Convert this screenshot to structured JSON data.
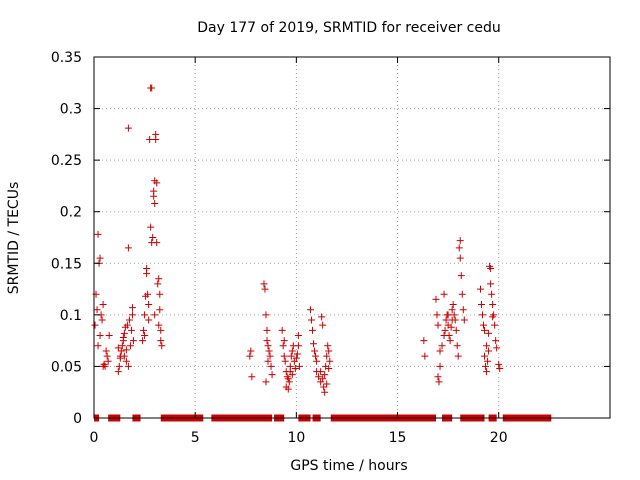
{
  "chart_data": {
    "type": "scatter",
    "title": "Day 177 of 2019, SRMTID for receiver cedu",
    "xlabel": "GPS time / hours",
    "ylabel": "SRMTID / TECUs",
    "xlim": [
      0,
      25.5
    ],
    "ylim": [
      0,
      0.35
    ],
    "xticks": [
      0,
      5,
      10,
      15,
      20
    ],
    "xtick_labels": [
      "0",
      "5",
      "10",
      "15",
      "20"
    ],
    "yticks": [
      0,
      0.05,
      0.1,
      0.15,
      0.2,
      0.25,
      0.3,
      0.35
    ],
    "ytick_labels": [
      "0",
      "0.05",
      "0.1",
      "0.15",
      "0.2",
      "0.25",
      "0.3",
      "0.35"
    ],
    "grid": true,
    "marker": "plus",
    "color": "#cc0000",
    "series": [
      {
        "name": "SRMTID",
        "points": [
          [
            0.05,
            0.09
          ],
          [
            0.1,
            0.12
          ],
          [
            0.15,
            0.105
          ],
          [
            0.2,
            0.178
          ],
          [
            0.25,
            0.15
          ],
          [
            0.3,
            0.155
          ],
          [
            0.2,
            0.07
          ],
          [
            0.3,
            0.08
          ],
          [
            0.35,
            0.1
          ],
          [
            0.4,
            0.095
          ],
          [
            0.45,
            0.11
          ],
          [
            0.5,
            0.052
          ],
          [
            0.55,
            0.05
          ],
          [
            0.6,
            0.065
          ],
          [
            0.65,
            0.06
          ],
          [
            0.7,
            0.055
          ],
          [
            0.75,
            0.08
          ],
          [
            0.45,
            0.05
          ],
          [
            1.2,
            0.045
          ],
          [
            1.25,
            0.05
          ],
          [
            1.3,
            0.06
          ],
          [
            1.35,
            0.065
          ],
          [
            1.4,
            0.07
          ],
          [
            1.45,
            0.075
          ],
          [
            1.5,
            0.06
          ],
          [
            1.5,
            0.082
          ],
          [
            1.55,
            0.088
          ],
          [
            1.6,
            0.055
          ],
          [
            1.65,
            0.09
          ],
          [
            1.7,
            0.05
          ],
          [
            1.75,
            0.095
          ],
          [
            1.8,
            0.07
          ],
          [
            1.85,
            0.085
          ],
          [
            1.9,
            0.1
          ],
          [
            1.95,
            0.075
          ],
          [
            1.7,
            0.165
          ],
          [
            1.7,
            0.281
          ],
          [
            1.2,
            0.068
          ],
          [
            1.3,
            0.058
          ],
          [
            1.45,
            0.078
          ],
          [
            1.6,
            0.066
          ],
          [
            1.9,
            0.107
          ],
          [
            2.4,
            0.075
          ],
          [
            2.45,
            0.085
          ],
          [
            2.5,
            0.1
          ],
          [
            2.55,
            0.118
          ],
          [
            2.6,
            0.14
          ],
          [
            2.6,
            0.145
          ],
          [
            2.65,
            0.12
          ],
          [
            2.7,
            0.11
          ],
          [
            2.75,
            0.27
          ],
          [
            2.8,
            0.32
          ],
          [
            2.85,
            0.32
          ],
          [
            2.8,
            0.185
          ],
          [
            2.85,
            0.17
          ],
          [
            2.9,
            0.175
          ],
          [
            2.95,
            0.215
          ],
          [
            2.95,
            0.22
          ],
          [
            3.0,
            0.23
          ],
          [
            3.0,
            0.208
          ],
          [
            3.05,
            0.27
          ],
          [
            3.05,
            0.275
          ],
          [
            3.1,
            0.228
          ],
          [
            3.1,
            0.17
          ],
          [
            3.15,
            0.13
          ],
          [
            3.2,
            0.135
          ],
          [
            3.25,
            0.105
          ],
          [
            3.3,
            0.085
          ],
          [
            3.3,
            0.075
          ],
          [
            3.35,
            0.07
          ],
          [
            2.5,
            0.08
          ],
          [
            2.7,
            0.095
          ],
          [
            3.0,
            0.1
          ],
          [
            3.2,
            0.09
          ],
          [
            3.25,
            0.12
          ],
          [
            7.7,
            0.06
          ],
          [
            7.75,
            0.065
          ],
          [
            7.8,
            0.04
          ],
          [
            8.4,
            0.13
          ],
          [
            8.45,
            0.125
          ],
          [
            8.5,
            0.1
          ],
          [
            8.55,
            0.085
          ],
          [
            8.6,
            0.07
          ],
          [
            8.6,
            0.055
          ],
          [
            8.65,
            0.065
          ],
          [
            8.7,
            0.06
          ],
          [
            8.75,
            0.05
          ],
          [
            8.8,
            0.042
          ],
          [
            8.5,
            0.035
          ],
          [
            8.55,
            0.075
          ],
          [
            9.3,
            0.085
          ],
          [
            9.35,
            0.07
          ],
          [
            9.4,
            0.06
          ],
          [
            9.45,
            0.055
          ],
          [
            9.5,
            0.045
          ],
          [
            9.55,
            0.04
          ],
          [
            9.6,
            0.038
          ],
          [
            9.65,
            0.035
          ],
          [
            9.7,
            0.05
          ],
          [
            9.75,
            0.06
          ],
          [
            9.8,
            0.065
          ],
          [
            9.85,
            0.07
          ],
          [
            9.5,
            0.03
          ],
          [
            9.6,
            0.028
          ],
          [
            9.7,
            0.045
          ],
          [
            9.9,
            0.055
          ],
          [
            9.95,
            0.048
          ],
          [
            10.0,
            0.058
          ],
          [
            10.05,
            0.062
          ],
          [
            10.1,
            0.07
          ],
          [
            10.1,
            0.08
          ],
          [
            10.15,
            0.05
          ],
          [
            9.4,
            0.075
          ],
          [
            9.8,
            0.042
          ],
          [
            10.7,
            0.105
          ],
          [
            10.75,
            0.095
          ],
          [
            10.8,
            0.085
          ],
          [
            10.85,
            0.072
          ],
          [
            10.9,
            0.065
          ],
          [
            10.95,
            0.06
          ],
          [
            11.0,
            0.045
          ],
          [
            11.1,
            0.04
          ],
          [
            11.2,
            0.035
          ],
          [
            11.25,
            0.098
          ],
          [
            11.3,
            0.09
          ],
          [
            11.35,
            0.03
          ],
          [
            11.4,
            0.025
          ],
          [
            11.45,
            0.05
          ],
          [
            11.5,
            0.06
          ],
          [
            11.55,
            0.07
          ],
          [
            11.6,
            0.065
          ],
          [
            11.65,
            0.055
          ],
          [
            11.2,
            0.045
          ],
          [
            11.3,
            0.038
          ],
          [
            11.4,
            0.042
          ],
          [
            11.5,
            0.033
          ],
          [
            11.6,
            0.048
          ],
          [
            11.0,
            0.055
          ],
          [
            16.3,
            0.075
          ],
          [
            16.35,
            0.06
          ],
          [
            16.9,
            0.115
          ],
          [
            16.95,
            0.1
          ],
          [
            17.0,
            0.09
          ],
          [
            17.0,
            0.04
          ],
          [
            17.05,
            0.035
          ],
          [
            17.1,
            0.05
          ],
          [
            17.1,
            0.065
          ],
          [
            17.2,
            0.07
          ],
          [
            17.3,
            0.08
          ],
          [
            17.35,
            0.085
          ],
          [
            17.4,
            0.095
          ],
          [
            17.45,
            0.1
          ],
          [
            17.5,
            0.09
          ],
          [
            17.55,
            0.08
          ],
          [
            17.6,
            0.075
          ],
          [
            17.65,
            0.088
          ],
          [
            17.7,
            0.105
          ],
          [
            17.75,
            0.11
          ],
          [
            17.8,
            0.1
          ],
          [
            17.85,
            0.095
          ],
          [
            17.9,
            0.085
          ],
          [
            17.95,
            0.07
          ],
          [
            18.0,
            0.06
          ],
          [
            18.05,
            0.165
          ],
          [
            18.1,
            0.172
          ],
          [
            18.1,
            0.155
          ],
          [
            18.15,
            0.138
          ],
          [
            18.2,
            0.12
          ],
          [
            18.25,
            0.105
          ],
          [
            18.3,
            0.095
          ],
          [
            17.3,
            0.12
          ],
          [
            17.5,
            0.1
          ],
          [
            17.7,
            0.095
          ],
          [
            19.1,
            0.125
          ],
          [
            19.15,
            0.11
          ],
          [
            19.2,
            0.1
          ],
          [
            19.25,
            0.09
          ],
          [
            19.3,
            0.085
          ],
          [
            19.3,
            0.06
          ],
          [
            19.35,
            0.05
          ],
          [
            19.4,
            0.045
          ],
          [
            19.45,
            0.055
          ],
          [
            19.5,
            0.065
          ],
          [
            19.55,
            0.147
          ],
          [
            19.6,
            0.145
          ],
          [
            19.6,
            0.13
          ],
          [
            19.65,
            0.12
          ],
          [
            19.7,
            0.11
          ],
          [
            19.75,
            0.1
          ],
          [
            19.8,
            0.09
          ],
          [
            19.85,
            0.075
          ],
          [
            19.9,
            0.068
          ],
          [
            20.0,
            0.052
          ],
          [
            20.05,
            0.048
          ],
          [
            19.4,
            0.07
          ],
          [
            19.5,
            0.082
          ],
          [
            19.7,
            0.098
          ]
        ],
        "zero_segments": [
          [
            0.0,
            0.25
          ],
          [
            0.7,
            1.3
          ],
          [
            1.9,
            2.3
          ],
          [
            3.3,
            5.4
          ],
          [
            5.8,
            8.8
          ],
          [
            8.9,
            9.4
          ],
          [
            10.1,
            10.7
          ],
          [
            10.8,
            11.2
          ],
          [
            11.7,
            16.9
          ],
          [
            17.2,
            17.7
          ],
          [
            18.1,
            19.3
          ],
          [
            19.5,
            19.9
          ],
          [
            20.2,
            22.6
          ]
        ]
      }
    ]
  }
}
